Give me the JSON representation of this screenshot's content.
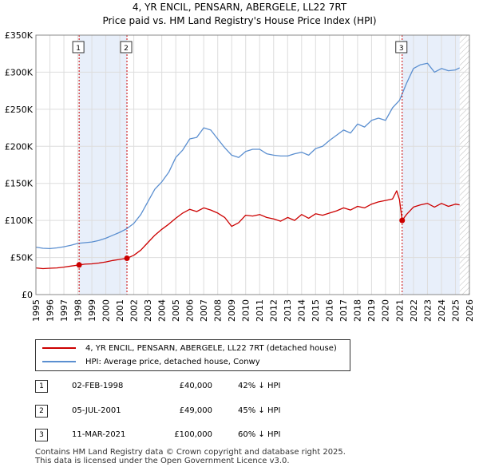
{
  "chart_data": {
    "type": "line",
    "title": "4, YR ENCIL, PENSARN, ABERGELE, LL22 7RT",
    "subtitle": "Price paid vs. HM Land Registry's House Price Index (HPI)",
    "xlim": [
      1995,
      2026
    ],
    "ylim": [
      0,
      350000
    ],
    "x_ticks": [
      1995,
      1996,
      1997,
      1998,
      1999,
      2000,
      2001,
      2002,
      2003,
      2004,
      2005,
      2006,
      2007,
      2008,
      2009,
      2010,
      2011,
      2012,
      2013,
      2014,
      2015,
      2016,
      2017,
      2018,
      2019,
      2020,
      2021,
      2022,
      2023,
      2024,
      2025,
      2026
    ],
    "y_ticks": [
      {
        "value": 0,
        "label": "£0"
      },
      {
        "value": 50000,
        "label": "£50K"
      },
      {
        "value": 100000,
        "label": "£100K"
      },
      {
        "value": 150000,
        "label": "£150K"
      },
      {
        "value": 200000,
        "label": "£200K"
      },
      {
        "value": 250000,
        "label": "£250K"
      },
      {
        "value": 300000,
        "label": "£300K"
      },
      {
        "value": 350000,
        "label": "£350K"
      }
    ],
    "shaded_periods": [
      [
        1998.09,
        2001.51
      ],
      [
        2021.19,
        2025.3
      ]
    ],
    "hatched_after": 2025.3,
    "series": [
      {
        "name": "4, YR ENCIL, PENSARN, ABERGELE, LL22 7RT (detached house)",
        "color": "#cc0000",
        "x": [
          1995,
          1995.5,
          1996,
          1996.5,
          1997,
          1997.5,
          1998.09,
          1998.5,
          1999,
          1999.5,
          2000,
          2000.5,
          2001,
          2001.51,
          2002,
          2002.5,
          2003,
          2003.5,
          2004,
          2004.5,
          2005,
          2005.5,
          2006,
          2006.5,
          2007,
          2007.5,
          2008,
          2008.5,
          2009,
          2009.5,
          2010,
          2010.5,
          2011,
          2011.5,
          2012,
          2012.5,
          2013,
          2013.5,
          2014,
          2014.5,
          2015,
          2015.5,
          2016,
          2016.5,
          2017,
          2017.5,
          2018,
          2018.5,
          2019,
          2019.5,
          2020,
          2020.5,
          2020.8,
          2021,
          2021.19,
          2021.5,
          2022,
          2022.5,
          2023,
          2023.5,
          2024,
          2024.5,
          2025,
          2025.3
        ],
        "values": [
          36000,
          35000,
          35500,
          36000,
          37000,
          38500,
          40000,
          41000,
          41500,
          42500,
          44000,
          46000,
          47500,
          49000,
          53000,
          60000,
          70000,
          80000,
          88000,
          95000,
          103000,
          110000,
          115000,
          112000,
          117000,
          114000,
          110000,
          104000,
          92000,
          97000,
          107000,
          106000,
          108000,
          104000,
          102000,
          99000,
          104000,
          100000,
          108000,
          103000,
          109000,
          107000,
          110000,
          113000,
          117000,
          114000,
          119000,
          117000,
          122000,
          125000,
          127000,
          129000,
          140000,
          128000,
          100000,
          108000,
          118000,
          121000,
          123000,
          118000,
          123000,
          119000,
          122000,
          121000
        ]
      },
      {
        "name": "HPI: Average price, detached house, Conwy",
        "color": "#5b8fd0",
        "x": [
          1995,
          1995.5,
          1996,
          1996.5,
          1997,
          1997.5,
          1998,
          1998.5,
          1999,
          1999.5,
          2000,
          2000.5,
          2001,
          2001.5,
          2002,
          2002.5,
          2003,
          2003.5,
          2004,
          2004.5,
          2005,
          2005.5,
          2006,
          2006.5,
          2007,
          2007.5,
          2008,
          2008.5,
          2009,
          2009.5,
          2010,
          2010.5,
          2011,
          2011.5,
          2012,
          2012.5,
          2013,
          2013.5,
          2014,
          2014.5,
          2015,
          2015.5,
          2016,
          2016.5,
          2017,
          2017.5,
          2018,
          2018.5,
          2019,
          2019.5,
          2020,
          2020.5,
          2021,
          2021.5,
          2022,
          2022.5,
          2023,
          2023.5,
          2024,
          2024.5,
          2025,
          2025.3
        ],
        "values": [
          64000,
          62500,
          62000,
          63000,
          64500,
          66500,
          69000,
          70000,
          71000,
          73000,
          76000,
          80000,
          84000,
          89000,
          96000,
          108000,
          125000,
          142000,
          152000,
          165000,
          185000,
          195000,
          210000,
          212000,
          225000,
          222000,
          210000,
          198000,
          188000,
          185000,
          193000,
          196000,
          196000,
          190000,
          188000,
          187000,
          187000,
          190000,
          192000,
          188000,
          197000,
          200000,
          208000,
          215000,
          222000,
          218000,
          230000,
          226000,
          235000,
          238000,
          235000,
          252000,
          262000,
          285000,
          305000,
          310000,
          312000,
          300000,
          305000,
          302000,
          303000,
          306000
        ]
      }
    ],
    "sales": [
      {
        "x": 1998.09,
        "value": 40000
      },
      {
        "x": 2001.51,
        "value": 49000
      },
      {
        "x": 2021.19,
        "value": 100000
      }
    ],
    "markers": [
      {
        "label": "1",
        "x": 1998.09
      },
      {
        "label": "2",
        "x": 2001.51
      },
      {
        "label": "3",
        "x": 2021.19
      }
    ]
  },
  "legend": {
    "property_label": "4, YR ENCIL, PENSARN, ABERGELE, LL22 7RT (detached house)",
    "hpi_label": "HPI: Average price, detached house, Conwy",
    "property_color": "#cc0000",
    "hpi_color": "#5b8fd0"
  },
  "transactions": [
    {
      "num": "1",
      "date": "02-FEB-1998",
      "price": "£40,000",
      "hpi": "42% ↓ HPI"
    },
    {
      "num": "2",
      "date": "05-JUL-2001",
      "price": "£49,000",
      "hpi": "45% ↓ HPI"
    },
    {
      "num": "3",
      "date": "11-MAR-2021",
      "price": "£100,000",
      "hpi": "60% ↓ HPI"
    }
  ],
  "footer": {
    "line1": "Contains HM Land Registry data © Crown copyright and database right 2025.",
    "line2": "This data is licensed under the Open Government Licence v3.0."
  }
}
